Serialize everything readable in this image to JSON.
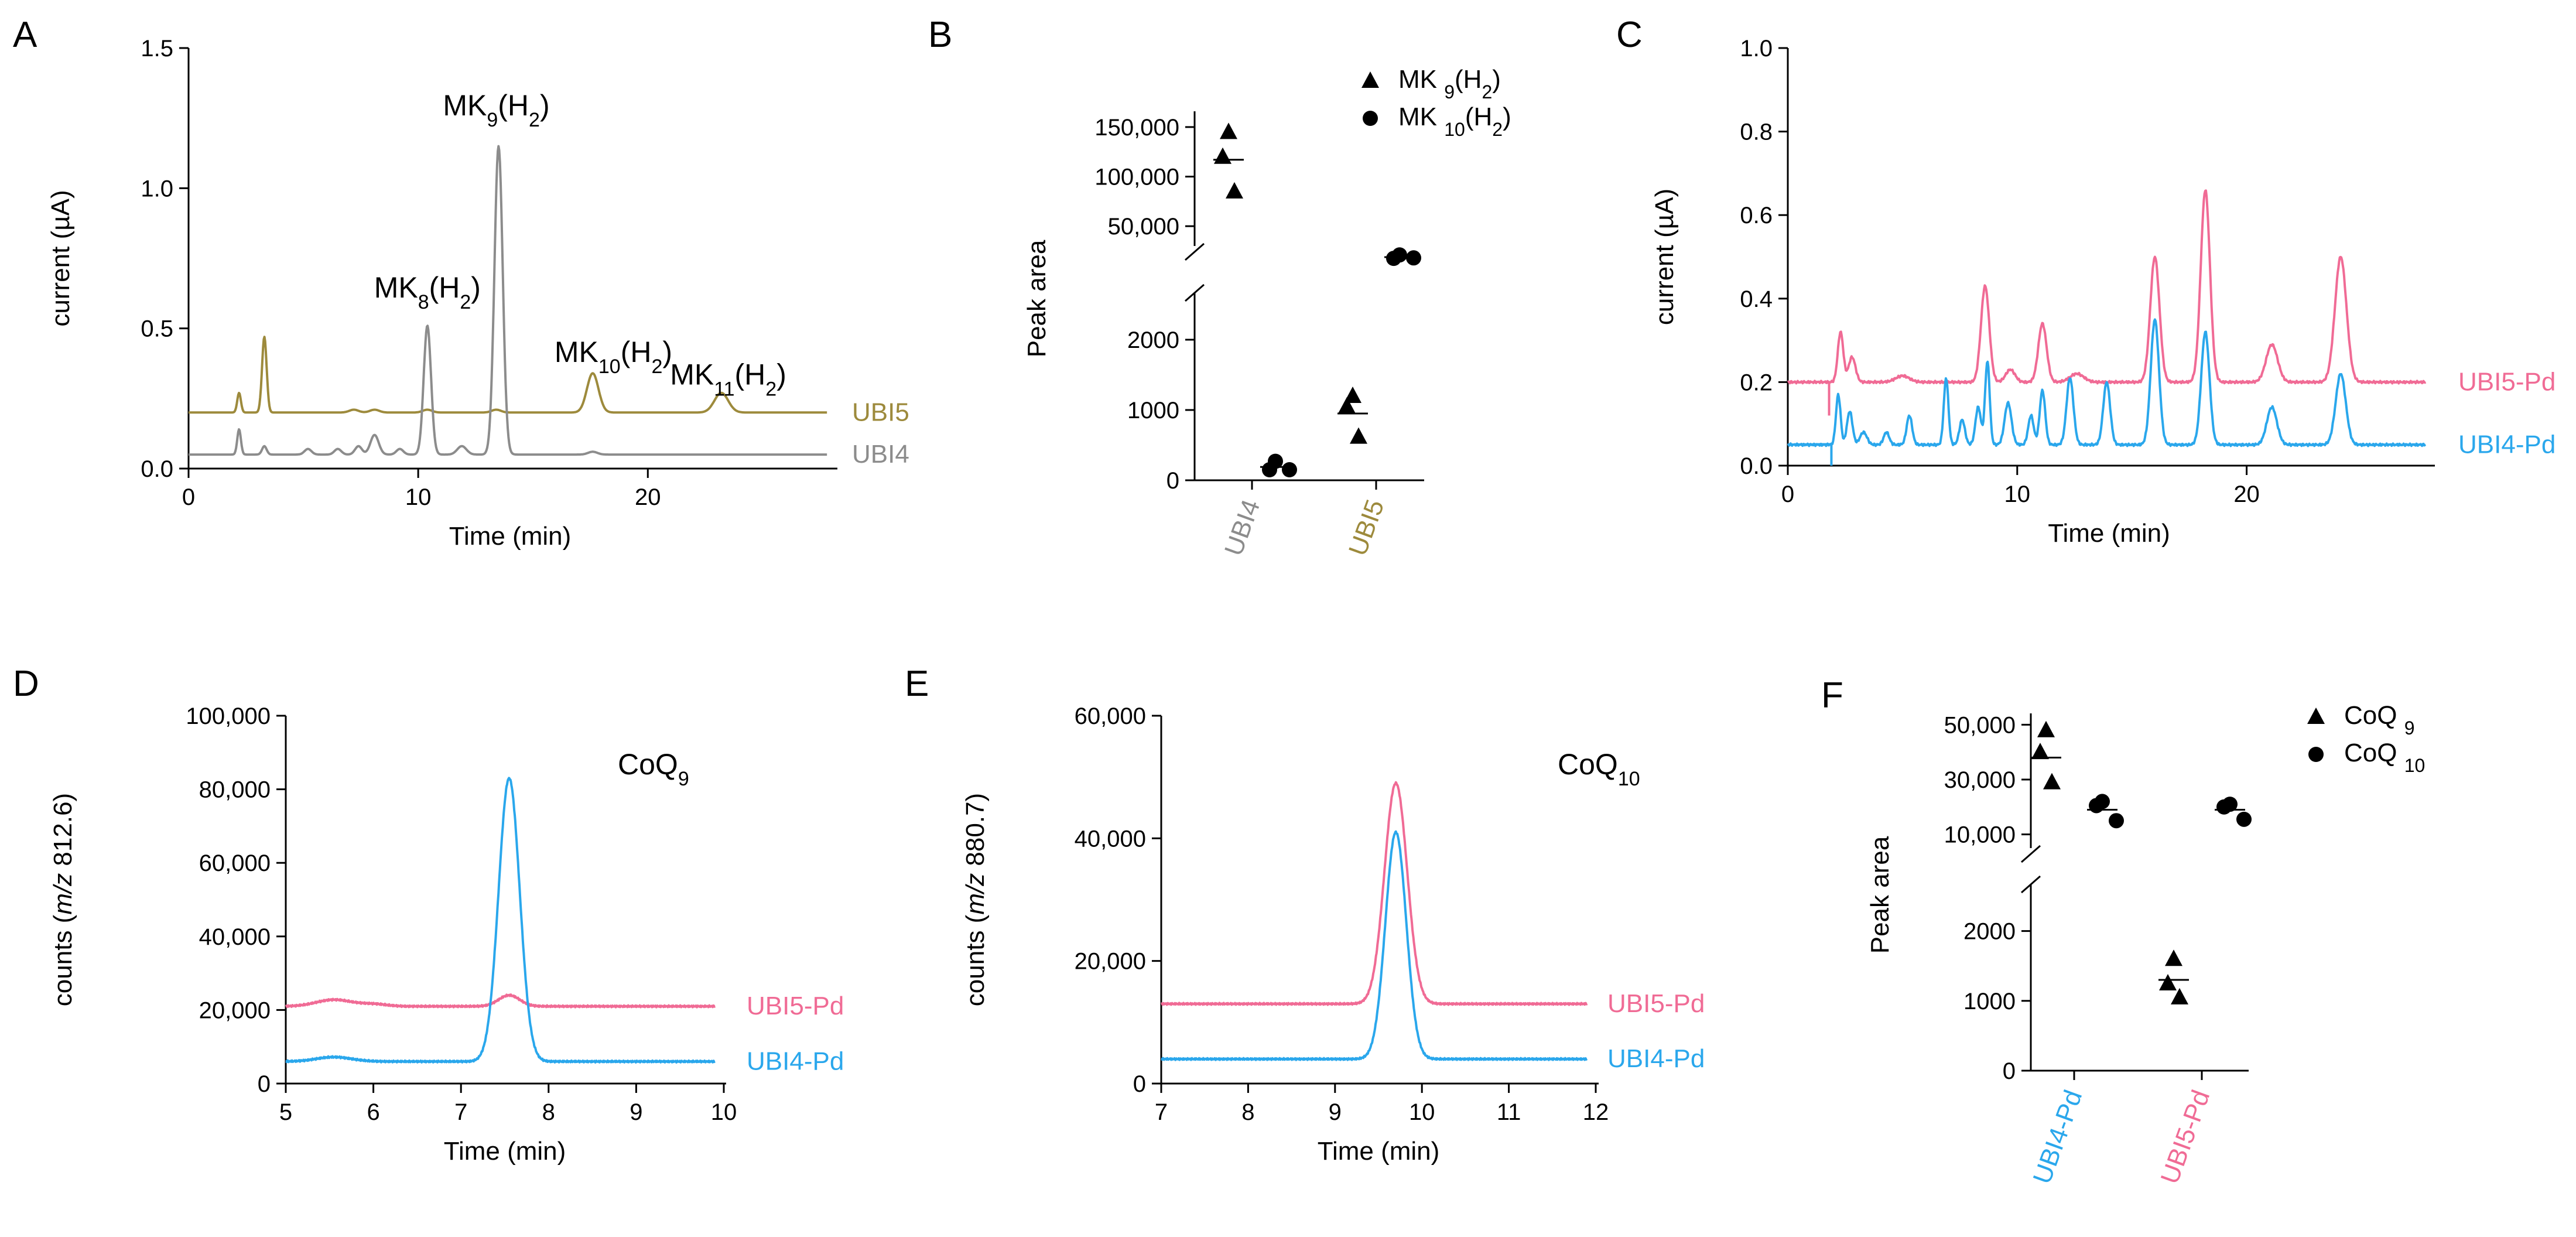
{
  "colors": {
    "ubi5": "#9d8a3c",
    "ubi4": "#8c8c8c",
    "ubi5pd": "#f06b95",
    "ubi4pd": "#2aa7ec",
    "black": "#000000"
  },
  "chart_data": [
    {
      "panel": "A",
      "type": "line",
      "xlabel": "Time (min)",
      "ylabel": "current (µA)",
      "xlim": [
        0,
        28
      ],
      "ylim": [
        0,
        1.5
      ],
      "xticks": [
        "0",
        "10",
        "20"
      ],
      "yticks": [
        "0.0",
        "0.5",
        "1.0",
        "1.5"
      ],
      "annotations": [
        {
          "base": "MK",
          "sub": "8",
          "suffix": "(H",
          "sub2": "2",
          "end": ")"
        },
        {
          "base": "MK",
          "sub": "9",
          "suffix": "(H",
          "sub2": "2",
          "end": ")"
        },
        {
          "base": "MK",
          "sub": "10",
          "suffix": "(H",
          "sub2": "2",
          "end": ")"
        },
        {
          "base": "MK",
          "sub": "11",
          "suffix": "(H",
          "sub2": "2",
          "end": ")"
        }
      ],
      "series": [
        {
          "name": "UBI5",
          "color": "#9d8a3c",
          "baseline": 0.2,
          "peaks": [
            [
              2.2,
              0.07,
              0.08
            ],
            [
              3.3,
              0.27,
              0.1
            ],
            [
              7.2,
              0.01,
              0.2
            ],
            [
              8.1,
              0.01,
              0.2
            ],
            [
              10.4,
              0.01,
              0.2
            ],
            [
              13.4,
              0.01,
              0.2
            ],
            [
              17.6,
              0.14,
              0.25
            ],
            [
              23.2,
              0.07,
              0.3
            ]
          ]
        },
        {
          "name": "UBI4",
          "color": "#8c8c8c",
          "baseline": 0.05,
          "peaks": [
            [
              2.2,
              0.09,
              0.08
            ],
            [
              3.3,
              0.03,
              0.1
            ],
            [
              5.2,
              0.02,
              0.15
            ],
            [
              6.5,
              0.02,
              0.15
            ],
            [
              7.4,
              0.03,
              0.15
            ],
            [
              8.1,
              0.07,
              0.18
            ],
            [
              9.2,
              0.02,
              0.15
            ],
            [
              10.4,
              0.46,
              0.16
            ],
            [
              11.9,
              0.03,
              0.2
            ],
            [
              13.5,
              1.1,
              0.18
            ],
            [
              17.6,
              0.01,
              0.2
            ]
          ]
        }
      ]
    },
    {
      "panel": "B",
      "type": "scatter",
      "ylabel": "Peak area",
      "categories": [
        "UBI4",
        "UBI5"
      ],
      "upper_yticks": [
        "50,000",
        "100,000",
        "150,000"
      ],
      "upper_ylim": [
        30000,
        160000
      ],
      "lower_yticks": [
        "0",
        "1000",
        "2000"
      ],
      "lower_ylim": [
        0,
        2500
      ],
      "legend": [
        {
          "marker": "triangle",
          "base": "MK ",
          "sub": "9",
          "suffix": "(H",
          "sub2": "2",
          "end": ")"
        },
        {
          "marker": "circle",
          "base": "MK ",
          "sub": "10",
          "suffix": "(H",
          "sub2": "2",
          "end": ")"
        }
      ],
      "series": [
        {
          "name": "MK9(H2)",
          "marker": "triangle",
          "points": {
            "UBI4": [
              145000,
              120000,
              85000
            ],
            "UBI5": [
              1200,
              1050,
              620
            ]
          },
          "means": {
            "UBI4": 117000,
            "UBI5": 950
          }
        },
        {
          "name": "MK10(H2)",
          "marker": "circle",
          "points": {
            "UBI4": [
              270,
              150,
              150
            ],
            "UBI5": [
              21000,
              17500,
              18000
            ]
          },
          "means": {
            "UBI4": 190,
            "UBI5": 18800
          }
        }
      ]
    },
    {
      "panel": "C",
      "type": "line",
      "xlabel": "Time (min)",
      "ylabel": "current (µA)",
      "xlim": [
        0,
        28
      ],
      "ylim": [
        0,
        1.0
      ],
      "xticks": [
        "0",
        "10",
        "20"
      ],
      "yticks": [
        "0.0",
        "0.2",
        "0.4",
        "0.6",
        "0.8",
        "1.0"
      ],
      "series": [
        {
          "name": "UBI5-Pd",
          "color": "#f06b95",
          "baseline": 0.2,
          "peaks": [
            [
              2.3,
              0.12,
              0.12
            ],
            [
              2.8,
              0.06,
              0.15
            ],
            [
              5.0,
              0.015,
              0.3
            ],
            [
              8.6,
              0.23,
              0.18
            ],
            [
              9.7,
              0.03,
              0.2
            ],
            [
              11.1,
              0.14,
              0.18
            ],
            [
              12.6,
              0.02,
              0.3
            ],
            [
              16.0,
              0.3,
              0.2
            ],
            [
              18.2,
              0.46,
              0.2
            ],
            [
              21.1,
              0.09,
              0.25
            ],
            [
              24.1,
              0.3,
              0.25
            ]
          ]
        },
        {
          "name": "UBI4-Pd",
          "color": "#2aa7ec",
          "baseline": 0.05,
          "peaks": [
            [
              2.2,
              0.12,
              0.1
            ],
            [
              2.7,
              0.08,
              0.12
            ],
            [
              3.3,
              0.03,
              0.15
            ],
            [
              4.3,
              0.03,
              0.12
            ],
            [
              5.3,
              0.07,
              0.12
            ],
            [
              6.9,
              0.16,
              0.1
            ],
            [
              7.6,
              0.06,
              0.12
            ],
            [
              8.3,
              0.09,
              0.12
            ],
            [
              8.7,
              0.2,
              0.1
            ],
            [
              9.6,
              0.1,
              0.15
            ],
            [
              10.6,
              0.07,
              0.12
            ],
            [
              11.1,
              0.13,
              0.12
            ],
            [
              12.3,
              0.16,
              0.15
            ],
            [
              13.9,
              0.15,
              0.15
            ],
            [
              16.0,
              0.3,
              0.18
            ],
            [
              18.2,
              0.27,
              0.18
            ],
            [
              21.1,
              0.09,
              0.22
            ],
            [
              24.1,
              0.17,
              0.22
            ]
          ]
        }
      ]
    },
    {
      "panel": "D",
      "type": "line",
      "xlabel": "Time (min)",
      "ylabel_pre": "counts (",
      "ylabel_ital": "m/z",
      "ylabel_post": " 812.6)",
      "title_base": "CoQ",
      "title_sub": "9",
      "xlim": [
        5,
        10
      ],
      "ylim": [
        0,
        100000
      ],
      "xticks": [
        "5",
        "6",
        "7",
        "8",
        "9",
        "10"
      ],
      "yticks": [
        "0",
        "20,000",
        "40,000",
        "60,000",
        "80,000",
        "100,000"
      ],
      "series": [
        {
          "name": "UBI5-Pd",
          "color": "#f06b95",
          "baseline": 21000,
          "peaks": [
            [
              5.55,
              1800,
              0.2
            ],
            [
              6.0,
              600,
              0.15
            ],
            [
              7.55,
              3000,
              0.12
            ]
          ]
        },
        {
          "name": "UBI4-Pd",
          "color": "#2aa7ec",
          "baseline": 6000,
          "peaks": [
            [
              5.55,
              1200,
              0.2
            ],
            [
              7.55,
              77000,
              0.12
            ]
          ]
        }
      ]
    },
    {
      "panel": "E",
      "type": "line",
      "xlabel": "Time (min)",
      "ylabel_pre": "counts (",
      "ylabel_ital": "m/z",
      "ylabel_post": " 880.7)",
      "title_base": "CoQ",
      "title_sub": "10",
      "xlim": [
        7,
        12
      ],
      "ylim": [
        0,
        60000
      ],
      "xticks": [
        "7",
        "8",
        "9",
        "10",
        "11",
        "12"
      ],
      "yticks": [
        "0",
        "20,000",
        "40,000",
        "60,000"
      ],
      "series": [
        {
          "name": "UBI5-Pd",
          "color": "#f06b95",
          "baseline": 13000,
          "peaks": [
            [
              9.7,
              36000,
              0.13
            ]
          ]
        },
        {
          "name": "UBI4-Pd",
          "color": "#2aa7ec",
          "baseline": 4000,
          "peaks": [
            [
              9.7,
              37000,
              0.12
            ]
          ]
        }
      ]
    },
    {
      "panel": "F",
      "type": "scatter",
      "ylabel": "Peak area",
      "categories": [
        "UBI4-Pd",
        "UBI5-Pd"
      ],
      "upper_yticks": [
        "10,000",
        "30,000",
        "50,000"
      ],
      "upper_ylim": [
        5000,
        52000
      ],
      "lower_yticks": [
        "0",
        "1000",
        "2000"
      ],
      "lower_ylim": [
        0,
        2500
      ],
      "legend": [
        {
          "marker": "triangle",
          "base": "CoQ ",
          "sub": "9"
        },
        {
          "marker": "circle",
          "base": "CoQ ",
          "sub": "10"
        }
      ],
      "series": [
        {
          "name": "CoQ9",
          "marker": "triangle",
          "points": {
            "UBI4-Pd": [
              48000,
              40000,
              29000
            ],
            "UBI5-Pd": [
              1600,
              1250,
              1050
            ]
          },
          "means": {
            "UBI4-Pd": 38000,
            "UBI5-Pd": 1300
          }
        },
        {
          "name": "CoQ10",
          "marker": "circle",
          "points": {
            "UBI4-Pd": [
              22000,
              20500,
              15000
            ],
            "UBI5-Pd": [
              21000,
              20000,
              15500
            ]
          },
          "means": {
            "UBI4-Pd": 19000,
            "UBI5-Pd": 19000
          }
        }
      ]
    }
  ]
}
